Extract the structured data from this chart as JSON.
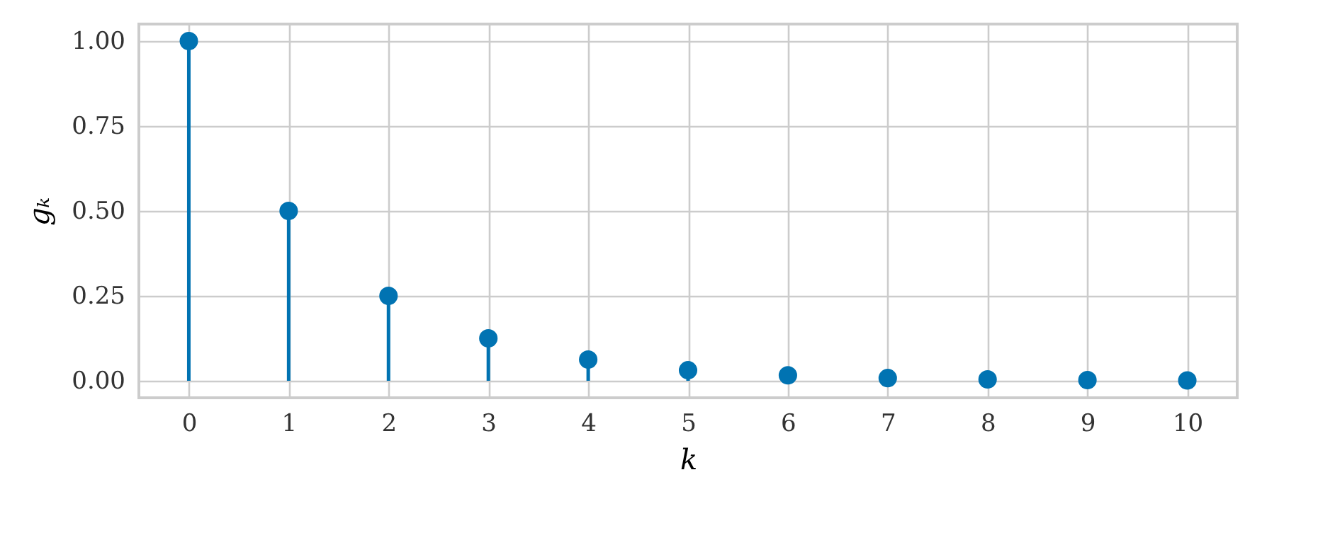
{
  "chart_data": {
    "type": "lollipop",
    "xlabel": "k",
    "ylabel": "gₖ",
    "x": [
      0,
      1,
      2,
      3,
      4,
      5,
      6,
      7,
      8,
      9,
      10
    ],
    "series": [
      {
        "color": "#0173b2",
        "values": [
          1,
          0.5,
          0.25,
          0.125,
          0.0625,
          0.031,
          0.016,
          0.008,
          0.004,
          0.002,
          0.001
        ]
      }
    ],
    "xlim": [
      -0.5,
      10.5
    ],
    "xticks": [
      0,
      1,
      2,
      3,
      4,
      5,
      6,
      7,
      8,
      9,
      10
    ],
    "ylim": [
      -0.05,
      1.05
    ],
    "yticks": [
      {
        "value": 0,
        "label": "0.00"
      },
      {
        "value": 0.25,
        "label": "0.25"
      },
      {
        "value": 0.5,
        "label": "0.50"
      },
      {
        "value": 0.75,
        "label": "0.75"
      },
      {
        "value": 1,
        "label": "1.00"
      }
    ],
    "grid": true,
    "marker": "circle"
  }
}
